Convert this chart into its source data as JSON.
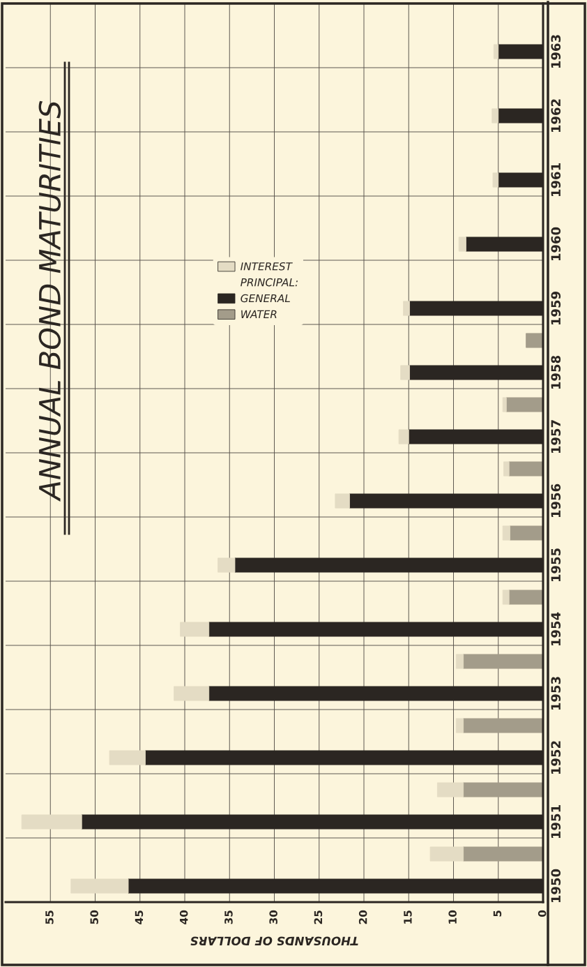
{
  "chart_data": {
    "type": "bar",
    "orientation": "horizontal",
    "stacked": true,
    "title": "ANNUAL BOND MATURITIES",
    "xlabel": "THOUSANDS OF DOLLARS",
    "categories": [
      null,
      "1963",
      null,
      "1962",
      null,
      "1961",
      null,
      "1960",
      null,
      "1959",
      null,
      "1958",
      null,
      "1957",
      null,
      "1956",
      null,
      "1955",
      null,
      "1954",
      null,
      "1953",
      null,
      "1952",
      null,
      "1951",
      null,
      "1950"
    ],
    "series": [
      {
        "name": "GENERAL",
        "color": "#2b2622",
        "values": [
          null,
          5.0,
          null,
          5.0,
          null,
          5.0,
          null,
          8.6,
          null,
          14.9,
          null,
          14.9,
          null,
          15.0,
          null,
          21.6,
          null,
          34.4,
          null,
          37.3,
          null,
          37.3,
          null,
          44.4,
          null,
          51.5,
          null,
          46.3
        ]
      },
      {
        "name": "WATER",
        "color": "#a39c8a",
        "values": [
          null,
          null,
          null,
          null,
          null,
          null,
          null,
          null,
          null,
          null,
          1.9,
          null,
          4.1,
          null,
          3.8,
          null,
          3.7,
          null,
          3.8,
          null,
          8.9,
          null,
          8.9,
          null,
          8.9,
          null,
          8.9,
          null
        ]
      },
      {
        "name": "INTEREST",
        "color": "#e4dcc4",
        "values": [
          null,
          0.5,
          null,
          0.7,
          null,
          0.6,
          null,
          0.8,
          null,
          0.7,
          null,
          1.0,
          0.4,
          1.1,
          0.6,
          1.6,
          0.8,
          1.9,
          0.7,
          3.2,
          0.8,
          3.9,
          0.8,
          4.0,
          2.9,
          6.7,
          3.7,
          6.4
        ]
      }
    ],
    "xlim": [
      60,
      0
    ],
    "xticks": [
      0,
      5,
      10,
      15,
      20,
      25,
      30,
      35,
      40,
      45,
      50,
      55
    ],
    "grid": true,
    "legend": "top",
    "annotations": [
      "PRINCIPAL:"
    ]
  }
}
